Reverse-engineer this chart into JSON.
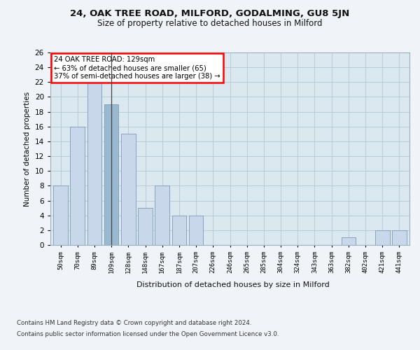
{
  "title1": "24, OAK TREE ROAD, MILFORD, GODALMING, GU8 5JN",
  "title2": "Size of property relative to detached houses in Milford",
  "xlabel": "Distribution of detached houses by size in Milford",
  "ylabel": "Number of detached properties",
  "categories": [
    "50sqm",
    "70sqm",
    "89sqm",
    "109sqm",
    "128sqm",
    "148sqm",
    "167sqm",
    "187sqm",
    "207sqm",
    "226sqm",
    "246sqm",
    "265sqm",
    "285sqm",
    "304sqm",
    "324sqm",
    "343sqm",
    "363sqm",
    "382sqm",
    "402sqm",
    "421sqm",
    "441sqm"
  ],
  "values": [
    8,
    16,
    22,
    19,
    15,
    5,
    8,
    4,
    4,
    0,
    0,
    0,
    0,
    0,
    0,
    0,
    0,
    1,
    0,
    2,
    2
  ],
  "bar_color_default": "#c8d8ea",
  "bar_color_highlight": "#9ab8d0",
  "highlight_index": 3,
  "subject_line_index": 3,
  "annotation_title": "24 OAK TREE ROAD: 129sqm",
  "annotation_line1": "← 63% of detached houses are smaller (65)",
  "annotation_line2": "37% of semi-detached houses are larger (38) →",
  "ylim": [
    0,
    26
  ],
  "yticks": [
    0,
    2,
    4,
    6,
    8,
    10,
    12,
    14,
    16,
    18,
    20,
    22,
    24,
    26
  ],
  "grid_color": "#b8ccd8",
  "plot_bg_color": "#dce8f0",
  "fig_bg_color": "#f0f4f8",
  "footer1": "Contains HM Land Registry data © Crown copyright and database right 2024.",
  "footer2": "Contains public sector information licensed under the Open Government Licence v3.0."
}
